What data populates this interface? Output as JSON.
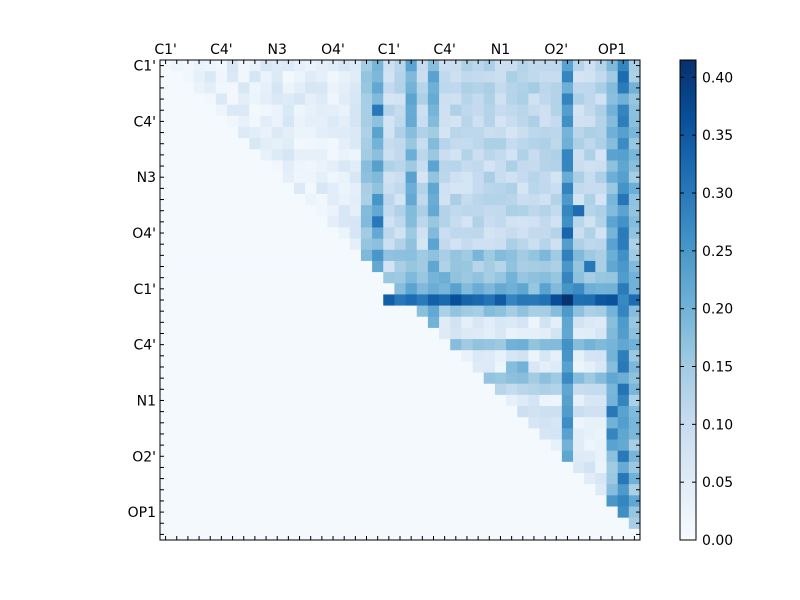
{
  "chart_data": {
    "type": "heatmap",
    "title": "",
    "xlabel": "",
    "ylabel": "",
    "rows": 43,
    "cols": 43,
    "layout": "upper-triangular",
    "x_tick_labels": [
      "C1'",
      "C4'",
      "N3",
      "O4'",
      "C1'",
      "C4'",
      "N1",
      "O2'",
      "OP1"
    ],
    "y_tick_labels": [
      "C1'",
      "C4'",
      "N3",
      "O4'",
      "C1'",
      "C4'",
      "N1",
      "O2'",
      "OP1"
    ],
    "tick_positions": [
      0,
      5,
      10,
      15,
      20,
      25,
      30,
      35,
      40
    ],
    "colorbar": {
      "min": 0.0,
      "max": 0.415,
      "tick_values": [
        0.0,
        0.05,
        0.1,
        0.15,
        0.2,
        0.25,
        0.3,
        0.35,
        0.4
      ],
      "tick_labels": [
        "0.00",
        "0.05",
        "0.10",
        "0.15",
        "0.20",
        "0.25",
        "0.30",
        "0.35",
        "0.40"
      ],
      "colormap": "Blues"
    },
    "band_rows": [
      {
        "row": 2,
        "level": 0.13,
        "min_col": 20
      },
      {
        "row": 7,
        "level": 0.12,
        "min_col": 20
      },
      {
        "row": 13,
        "level": 0.12,
        "min_col": 20
      },
      {
        "row": 17,
        "level": 0.17,
        "min_col": 20
      },
      {
        "row": 18,
        "level": 0.15,
        "min_col": 21
      },
      {
        "row": 19,
        "level": 0.18,
        "min_col": 20
      },
      {
        "row": 20,
        "level": 0.2,
        "min_col": 20
      },
      {
        "row": 21,
        "level": 0.33,
        "min_col": 20
      },
      {
        "row": 22,
        "level": 0.16,
        "min_col": 20
      },
      {
        "row": 25,
        "level": 0.18,
        "min_col": 23
      },
      {
        "row": 28,
        "level": 0.17,
        "min_col": 28
      },
      {
        "row": 29,
        "level": 0.12,
        "min_col": 28
      },
      {
        "row": 31,
        "level": 0.1,
        "min_col": 31
      },
      {
        "row": 39,
        "level": 0.14,
        "min_col": 37
      },
      {
        "row": 41,
        "level": 0.12,
        "min_col": 39
      }
    ],
    "band_cols": [
      {
        "col": 18,
        "level": 0.17
      },
      {
        "col": 19,
        "level": 0.22
      },
      {
        "col": 22,
        "level": 0.2
      },
      {
        "col": 24,
        "level": 0.2
      },
      {
        "col": 36,
        "level": 0.25
      },
      {
        "col": 40,
        "level": 0.2
      },
      {
        "col": 41,
        "level": 0.27
      },
      {
        "col": 42,
        "level": 0.18
      }
    ],
    "hot_cells": [
      {
        "r": 21,
        "c": 36,
        "v": 0.41
      },
      {
        "r": 21,
        "c": 20,
        "v": 0.34
      },
      {
        "r": 21,
        "c": 21,
        "v": 0.3
      },
      {
        "r": 20,
        "c": 37,
        "v": 0.27
      },
      {
        "r": 18,
        "c": 38,
        "v": 0.3
      },
      {
        "r": 15,
        "c": 36,
        "v": 0.33
      },
      {
        "r": 13,
        "c": 37,
        "v": 0.32
      },
      {
        "r": 14,
        "c": 19,
        "v": 0.3
      },
      {
        "r": 4,
        "c": 19,
        "v": 0.3
      },
      {
        "r": 1,
        "c": 41,
        "v": 0.32
      },
      {
        "r": 1,
        "c": 36,
        "v": 0.28
      },
      {
        "r": 0,
        "c": 41,
        "v": 0.28
      },
      {
        "r": 39,
        "c": 42,
        "v": 0.22
      },
      {
        "r": 39,
        "c": 41,
        "v": 0.28
      },
      {
        "r": 39,
        "c": 40,
        "v": 0.25
      },
      {
        "r": 27,
        "c": 31,
        "v": 0.18
      },
      {
        "r": 27,
        "c": 32,
        "v": 0.2
      },
      {
        "r": 31,
        "c": 40,
        "v": 0.3
      },
      {
        "r": 33,
        "c": 40,
        "v": 0.28
      }
    ],
    "background_level": 0.006
  }
}
